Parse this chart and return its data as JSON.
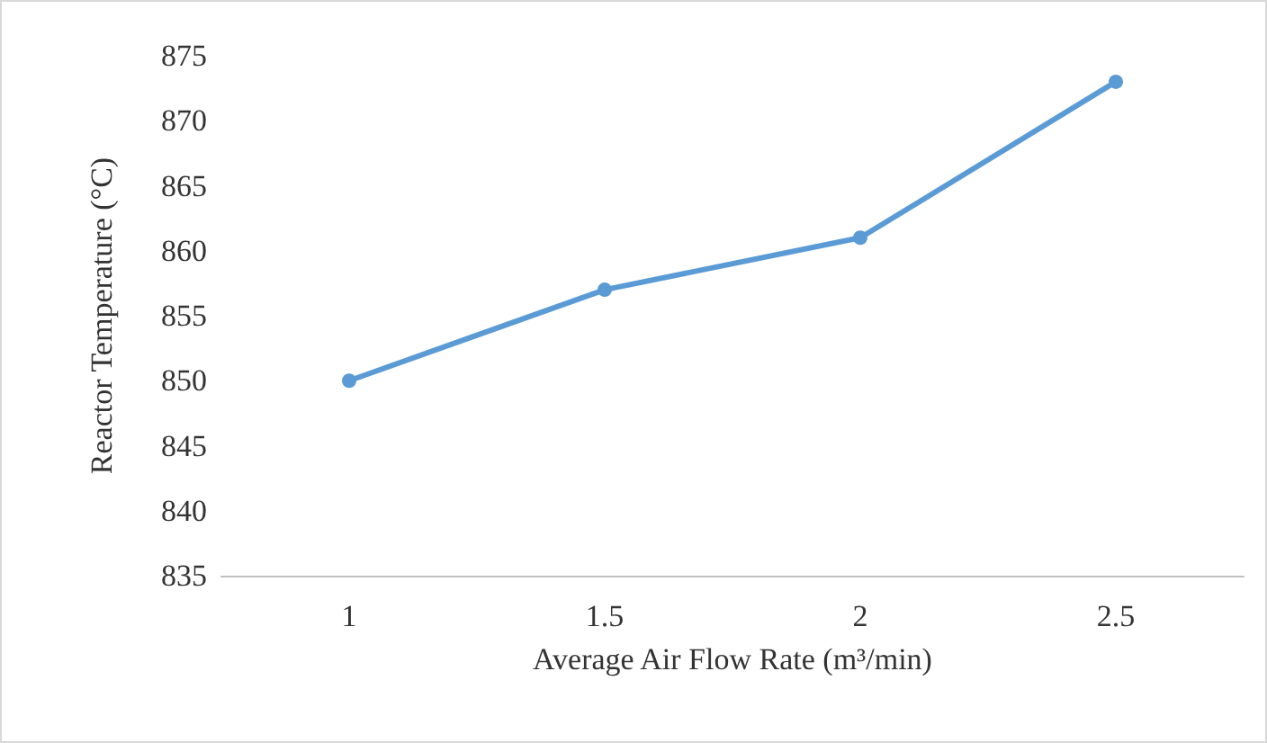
{
  "chart_data": {
    "type": "line",
    "xlabel": "Average Air Flow Rate (m³/min)",
    "ylabel": "Reactor Temperature (°C)",
    "categories": [
      "1",
      "1.5",
      "2",
      "2.5"
    ],
    "series": [
      {
        "color": "#5b9bd5",
        "values": [
          850,
          857,
          861,
          873
        ]
      }
    ],
    "ylim": [
      835,
      875
    ],
    "yticks": [
      835,
      840,
      845,
      850,
      855,
      860,
      865,
      870,
      875
    ],
    "grid": false,
    "marker": "circle",
    "line_style": "solid"
  }
}
